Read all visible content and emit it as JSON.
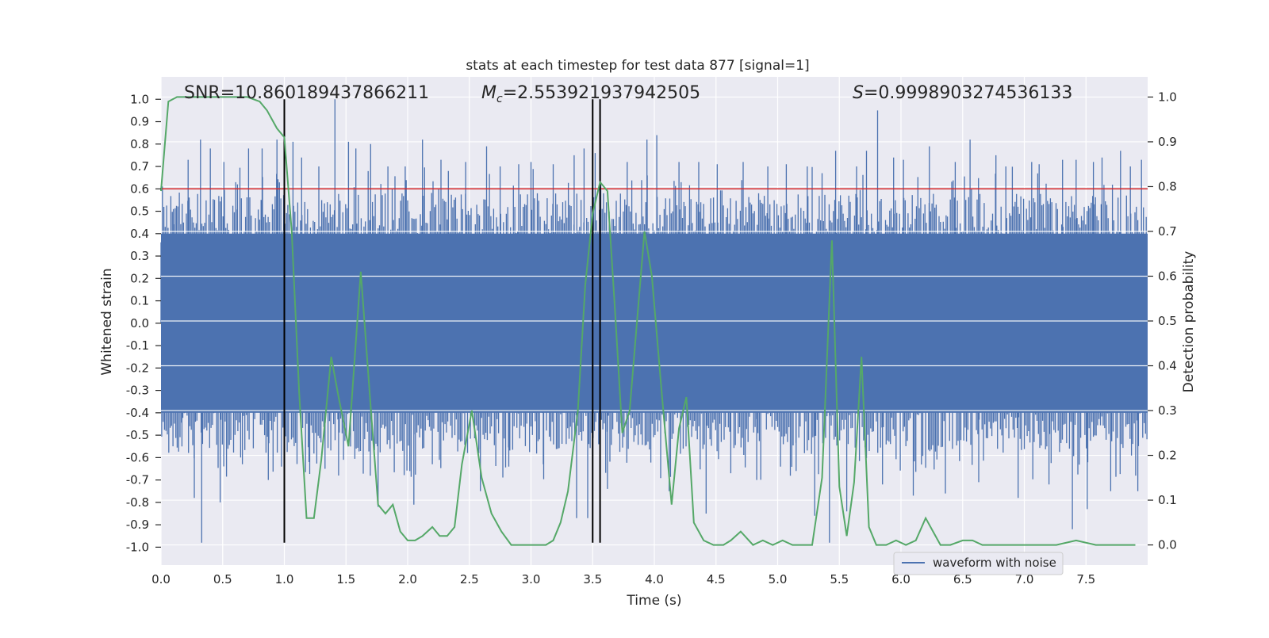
{
  "chart_data": {
    "type": "line",
    "title": "stats at each timestep for test data 877 [signal=1]",
    "xlabel": "Time (s)",
    "ylabel_left": "Whitened strain",
    "ylabel_right": "Detection probability",
    "xlim": [
      0.0,
      8.0
    ],
    "ylim_left": [
      -1.08,
      1.1
    ],
    "ylim_right": [
      -0.045,
      1.045
    ],
    "xticks": [
      "0.0",
      "0.5",
      "1.0",
      "1.5",
      "2.0",
      "2.5",
      "3.0",
      "3.5",
      "4.0",
      "4.5",
      "5.0",
      "5.5",
      "6.0",
      "6.5",
      "7.0",
      "7.5"
    ],
    "yticks_left": [
      "1.0",
      "0.9",
      "0.8",
      "0.7",
      "0.6",
      "0.5",
      "0.4",
      "0.3",
      "0.2",
      "0.1",
      "0.0",
      "-0.1",
      "-0.2",
      "-0.3",
      "-0.4",
      "-0.5",
      "-0.6",
      "-0.7",
      "-0.8",
      "-0.9",
      "-1.0"
    ],
    "yticks_right": [
      "1.0",
      "0.9",
      "0.8",
      "0.7",
      "0.6",
      "0.5",
      "0.4",
      "0.3",
      "0.2",
      "0.1",
      "0.0"
    ],
    "grid": true,
    "annotations": {
      "snr": "SNR=10.860189437866211",
      "mc_symbol": "M",
      "mc_sub": "c",
      "mc_value": "=2.553921937942505",
      "s_symbol": "S",
      "s_value": "=0.9998903274536133"
    },
    "threshold": {
      "y": 0.6,
      "color": "#d62728"
    },
    "vertical_lines": [
      {
        "x": 1.0,
        "y_min": -0.98,
        "y_max": 1.0
      },
      {
        "x": 3.5,
        "y_min": -0.98,
        "y_max": 1.0
      },
      {
        "x": 3.56,
        "y_min": -0.98,
        "y_max": 1.0
      }
    ],
    "series": [
      {
        "name": "waveform with noise",
        "axis": "left",
        "color": "#4c72b0",
        "kind": "dense_noise",
        "duration": 8.0,
        "core_amplitude": 0.4,
        "spikes": [
          [
            0.1,
            0.51
          ],
          [
            0.17,
            -0.55
          ],
          [
            0.22,
            0.73
          ],
          [
            0.27,
            -0.78
          ],
          [
            0.32,
            0.82
          ],
          [
            0.33,
            -0.98
          ],
          [
            0.4,
            0.78
          ],
          [
            0.48,
            -0.8
          ],
          [
            0.51,
            0.72
          ],
          [
            0.62,
            0.62
          ],
          [
            0.66,
            -0.63
          ],
          [
            0.71,
            0.78
          ],
          [
            0.82,
            0.78
          ],
          [
            0.87,
            -0.7
          ],
          [
            0.94,
            0.82
          ],
          [
            1.0,
            -0.72
          ],
          [
            1.07,
            0.81
          ],
          [
            1.14,
            0.74
          ],
          [
            1.2,
            -0.62
          ],
          [
            1.28,
            0.7
          ],
          [
            1.33,
            -0.65
          ],
          [
            1.41,
            1.0
          ],
          [
            1.44,
            -0.68
          ],
          [
            1.52,
            0.81
          ],
          [
            1.58,
            0.78
          ],
          [
            1.64,
            -0.67
          ],
          [
            1.7,
            0.8
          ],
          [
            1.76,
            -0.82
          ],
          [
            1.84,
            0.7
          ],
          [
            1.98,
            0.7
          ],
          [
            2.05,
            -0.81
          ],
          [
            2.12,
            0.82
          ],
          [
            2.2,
            -0.63
          ],
          [
            2.27,
            0.73
          ],
          [
            2.33,
            0.68
          ],
          [
            2.47,
            0.72
          ],
          [
            2.59,
            -0.75
          ],
          [
            2.64,
            0.79
          ],
          [
            2.75,
            0.7
          ],
          [
            2.82,
            -0.64
          ],
          [
            2.9,
            0.71
          ],
          [
            3.0,
            0.72
          ],
          [
            3.1,
            -0.63
          ],
          [
            3.18,
            0.71
          ],
          [
            3.35,
            0.75
          ],
          [
            3.37,
            -0.87
          ],
          [
            3.43,
            0.78
          ],
          [
            3.46,
            -0.87
          ],
          [
            3.52,
            0.76
          ],
          [
            3.62,
            -0.74
          ],
          [
            3.78,
            0.72
          ],
          [
            3.94,
            0.82
          ],
          [
            4.02,
            0.84
          ],
          [
            4.12,
            -0.75
          ],
          [
            4.2,
            0.72
          ],
          [
            4.36,
            0.72
          ],
          [
            4.42,
            -0.85
          ],
          [
            4.51,
            0.71
          ],
          [
            4.62,
            -0.67
          ],
          [
            4.72,
            0.72
          ],
          [
            4.83,
            -0.7
          ],
          [
            4.92,
            0.7
          ],
          [
            5.07,
            0.71
          ],
          [
            5.15,
            -0.66
          ],
          [
            5.24,
            0.7
          ],
          [
            5.3,
            -0.86
          ],
          [
            5.36,
            0.67
          ],
          [
            5.42,
            -0.98
          ],
          [
            5.47,
            0.77
          ],
          [
            5.56,
            -0.84
          ],
          [
            5.64,
            0.7
          ],
          [
            5.72,
            0.77
          ],
          [
            5.81,
            0.95
          ],
          [
            5.85,
            -0.72
          ],
          [
            5.94,
            0.74
          ],
          [
            6.02,
            0.73
          ],
          [
            6.1,
            -0.77
          ],
          [
            6.23,
            0.79
          ],
          [
            6.36,
            -0.76
          ],
          [
            6.44,
            0.72
          ],
          [
            6.56,
            0.82
          ],
          [
            6.63,
            -0.71
          ],
          [
            6.77,
            0.75
          ],
          [
            6.85,
            0.7
          ],
          [
            6.95,
            -0.78
          ],
          [
            7.06,
            0.72
          ],
          [
            7.12,
            0.71
          ],
          [
            7.2,
            -0.72
          ],
          [
            7.31,
            0.73
          ],
          [
            7.39,
            -0.92
          ],
          [
            7.42,
            0.73
          ],
          [
            7.51,
            -0.83
          ],
          [
            7.56,
            0.72
          ],
          [
            7.63,
            0.74
          ],
          [
            7.7,
            -0.75
          ],
          [
            7.78,
            0.77
          ],
          [
            7.86,
            0.7
          ],
          [
            7.92,
            -0.75
          ],
          [
            7.95,
            0.73
          ]
        ]
      },
      {
        "name": "detection probability",
        "axis": "right",
        "color": "#55a868",
        "x": [
          0.0,
          0.06,
          0.13,
          0.25,
          0.4,
          0.55,
          0.7,
          0.8,
          0.86,
          0.94,
          1.0,
          1.06,
          1.12,
          1.18,
          1.24,
          1.3,
          1.38,
          1.44,
          1.52,
          1.62,
          1.7,
          1.76,
          1.82,
          1.88,
          1.94,
          2.0,
          2.06,
          2.12,
          2.2,
          2.26,
          2.32,
          2.38,
          2.44,
          2.52,
          2.6,
          2.68,
          2.76,
          2.84,
          2.92,
          3.0,
          3.06,
          3.12,
          3.18,
          3.24,
          3.3,
          3.38,
          3.44,
          3.5,
          3.56,
          3.62,
          3.68,
          3.74,
          3.8,
          3.86,
          3.92,
          3.98,
          4.06,
          4.14,
          4.2,
          4.26,
          4.32,
          4.4,
          4.48,
          4.56,
          4.62,
          4.7,
          4.8,
          4.88,
          4.96,
          5.04,
          5.12,
          5.2,
          5.28,
          5.36,
          5.44,
          5.5,
          5.56,
          5.62,
          5.68,
          5.74,
          5.8,
          5.88,
          5.96,
          6.04,
          6.12,
          6.2,
          6.26,
          6.32,
          6.4,
          6.5,
          6.58,
          6.66,
          6.76,
          6.86,
          6.96,
          7.1,
          7.26,
          7.42,
          7.58,
          7.74,
          7.9
        ],
        "values": [
          0.79,
          0.99,
          1.0,
          1.0,
          1.0,
          1.0,
          1.0,
          0.99,
          0.97,
          0.93,
          0.91,
          0.7,
          0.34,
          0.06,
          0.06,
          0.19,
          0.42,
          0.33,
          0.22,
          0.61,
          0.31,
          0.09,
          0.07,
          0.09,
          0.03,
          0.01,
          0.01,
          0.02,
          0.04,
          0.02,
          0.02,
          0.04,
          0.18,
          0.3,
          0.15,
          0.07,
          0.03,
          0.0,
          0.0,
          0.0,
          0.0,
          0.0,
          0.01,
          0.05,
          0.12,
          0.3,
          0.58,
          0.74,
          0.81,
          0.79,
          0.53,
          0.25,
          0.3,
          0.5,
          0.7,
          0.6,
          0.34,
          0.09,
          0.26,
          0.33,
          0.05,
          0.01,
          0.0,
          0.0,
          0.01,
          0.03,
          0.0,
          0.01,
          0.0,
          0.01,
          0.0,
          0.0,
          0.0,
          0.15,
          0.68,
          0.13,
          0.02,
          0.14,
          0.42,
          0.04,
          0.0,
          0.0,
          0.01,
          0.0,
          0.01,
          0.06,
          0.03,
          0.0,
          0.0,
          0.01,
          0.01,
          0.0,
          0.0,
          0.0,
          0.0,
          0.0,
          0.0,
          0.01,
          0.0,
          0.0,
          0.0
        ]
      }
    ],
    "legend": {
      "label": "waveform with noise",
      "position": "lower-right"
    }
  }
}
